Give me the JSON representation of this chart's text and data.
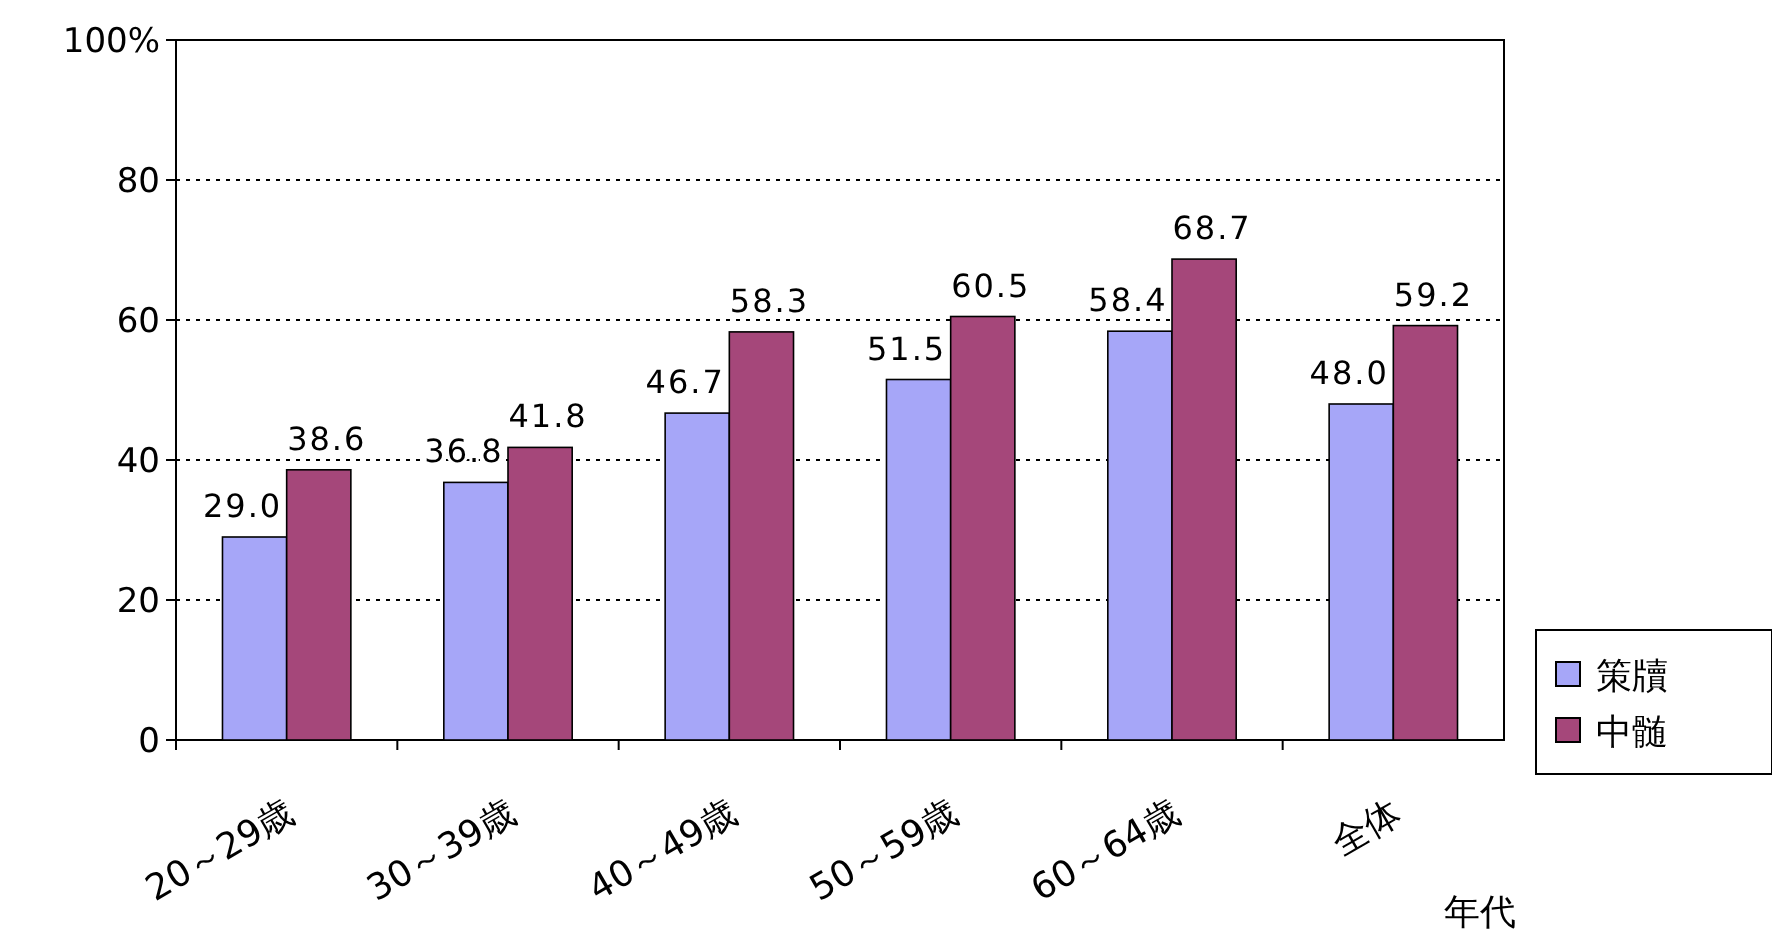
{
  "chart_data": {
    "type": "bar",
    "categories": [
      "20～29歳",
      "30～39歳",
      "40～49歳",
      "50～59歳",
      "60～64歳",
      "全体"
    ],
    "xlabel": "年代",
    "series": [
      {
        "name": "策牘",
        "color": "#a6a6f8",
        "values": [
          29.0,
          36.8,
          46.7,
          51.5,
          58.4,
          48.0
        ],
        "value_labels": [
          "29.0",
          "36.8",
          "46.7",
          "51.5",
          "58.4",
          "48.0"
        ]
      },
      {
        "name": "中髄",
        "color": "#a5477a",
        "values": [
          38.6,
          41.8,
          58.3,
          60.5,
          68.7,
          59.2
        ],
        "value_labels": [
          "38.6",
          "41.8",
          "58.3",
          "60.5",
          "68.7",
          "59.2"
        ]
      }
    ],
    "ylim": [
      0,
      100
    ],
    "yticks": [
      0,
      20,
      40,
      60,
      80,
      {
        "value": 100,
        "label": "100%"
      }
    ],
    "grid": "y",
    "legend": "right"
  }
}
